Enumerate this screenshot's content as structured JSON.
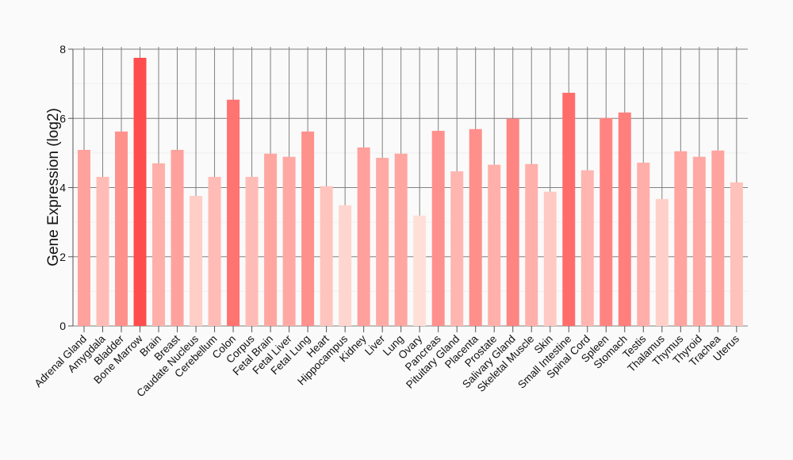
{
  "chart_data": {
    "type": "bar",
    "title": "",
    "xlabel": "",
    "ylabel": "Gene Expression (log2)",
    "ylim": [
      0,
      8
    ],
    "yticks": [
      0,
      2,
      4,
      6,
      8
    ],
    "grid": true,
    "categories": [
      "Adrenal Gland",
      "Amygdala",
      "Bladder",
      "Bone Marrow",
      "Brain",
      "Breast",
      "Caudate Nucleus",
      "Cerebellum",
      "Colon",
      "Corpus",
      "Fetal Brain",
      "Fetal Liver",
      "Fetal Lung",
      "Heart",
      "Hippocampus",
      "Kidney",
      "Liver",
      "Lung",
      "Ovary",
      "Pancreas",
      "Pituitary Gland",
      "Placenta",
      "Prostate",
      "Salivary Gland",
      "Skeletal Muscle",
      "Skin",
      "Small Intestine",
      "Spinal Cord",
      "Spleen",
      "Stomach",
      "Testis",
      "Thalamus",
      "Thymus",
      "Thyroid",
      "Trachea",
      "Uterus"
    ],
    "values": [
      5.09,
      4.31,
      5.62,
      7.75,
      4.7,
      5.09,
      3.76,
      4.31,
      6.54,
      4.31,
      4.98,
      4.89,
      5.62,
      4.04,
      3.49,
      5.16,
      4.86,
      4.98,
      3.19,
      5.64,
      4.47,
      5.69,
      4.66,
      5.99,
      4.68,
      3.88,
      6.74,
      4.5,
      6.01,
      6.17,
      4.72,
      3.67,
      5.05,
      4.89,
      5.07,
      4.15
    ],
    "color_low": "#ffe0d8",
    "color_high": "#ff4c4c"
  }
}
